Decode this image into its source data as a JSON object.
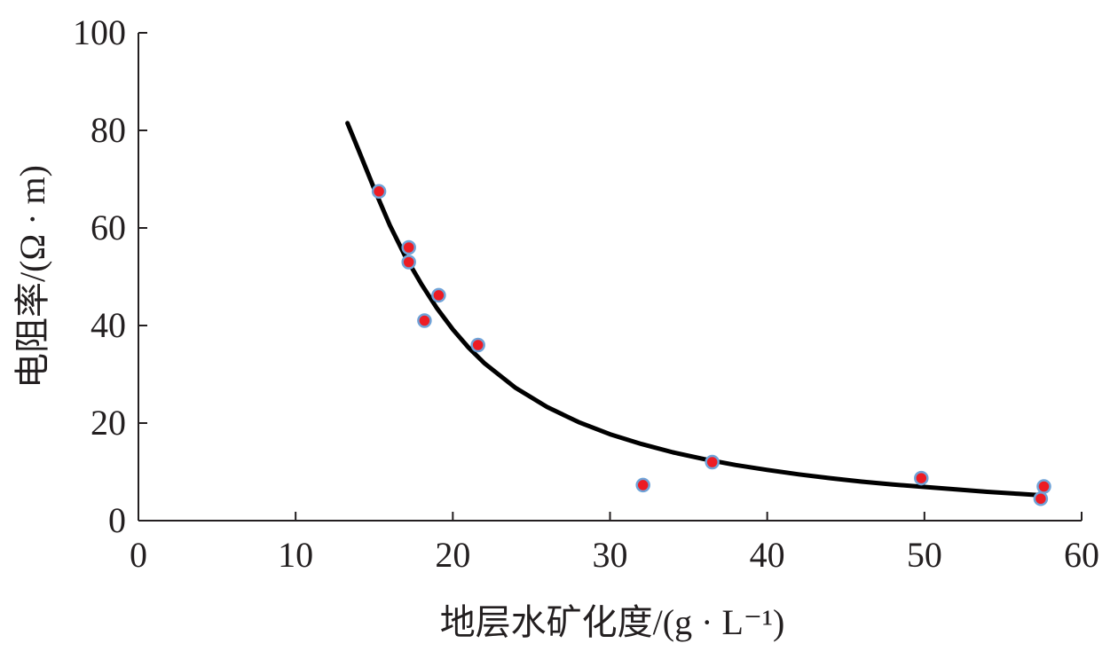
{
  "chart_data": {
    "type": "scatter",
    "title": "",
    "xlabel": "地层水矿化度/(g · L⁻¹)",
    "ylabel": "电阻率/(Ω · m)",
    "xlim": [
      0,
      60
    ],
    "ylim": [
      0,
      100
    ],
    "x_ticks": [
      "0",
      "10",
      "20",
      "30",
      "40",
      "50",
      "60"
    ],
    "y_ticks": [
      "0",
      "20",
      "40",
      "60",
      "80",
      "100"
    ],
    "grid": false,
    "legend": "none",
    "series": [
      {
        "kind": "scatter",
        "points": [
          {
            "x": 15.3,
            "y": 67.5
          },
          {
            "x": 17.2,
            "y": 56.0
          },
          {
            "x": 17.2,
            "y": 53.0
          },
          {
            "x": 18.2,
            "y": 41.0
          },
          {
            "x": 19.1,
            "y": 46.2
          },
          {
            "x": 21.6,
            "y": 36.0
          },
          {
            "x": 32.1,
            "y": 7.3
          },
          {
            "x": 36.5,
            "y": 12.0
          },
          {
            "x": 49.8,
            "y": 8.7
          },
          {
            "x": 57.4,
            "y": 4.5
          },
          {
            "x": 57.6,
            "y": 7.0
          }
        ],
        "fill_color": "#ed1c24",
        "edge_color": "#6fa3d8"
      },
      {
        "kind": "line",
        "points": [
          {
            "x": 13.3,
            "y": 81.5
          },
          {
            "x": 14.0,
            "y": 76.0
          },
          {
            "x": 15.0,
            "y": 68.0
          },
          {
            "x": 16.0,
            "y": 60.5
          },
          {
            "x": 17.0,
            "y": 54.0
          },
          {
            "x": 18.0,
            "y": 48.5
          },
          {
            "x": 19.0,
            "y": 43.5
          },
          {
            "x": 20.0,
            "y": 39.2
          },
          {
            "x": 21.0,
            "y": 35.5
          },
          {
            "x": 22.0,
            "y": 32.3
          },
          {
            "x": 24.0,
            "y": 27.2
          },
          {
            "x": 26.0,
            "y": 23.3
          },
          {
            "x": 28.0,
            "y": 20.2
          },
          {
            "x": 30.0,
            "y": 17.7
          },
          {
            "x": 32.0,
            "y": 15.7
          },
          {
            "x": 34.0,
            "y": 14.0
          },
          {
            "x": 36.0,
            "y": 12.6
          },
          {
            "x": 38.0,
            "y": 11.4
          },
          {
            "x": 40.0,
            "y": 10.4
          },
          {
            "x": 42.0,
            "y": 9.5
          },
          {
            "x": 44.0,
            "y": 8.7
          },
          {
            "x": 46.0,
            "y": 8.0
          },
          {
            "x": 48.0,
            "y": 7.4
          },
          {
            "x": 50.0,
            "y": 6.9
          },
          {
            "x": 52.0,
            "y": 6.4
          },
          {
            "x": 54.0,
            "y": 5.9
          },
          {
            "x": 56.0,
            "y": 5.5
          },
          {
            "x": 57.4,
            "y": 5.2
          }
        ],
        "color": "#000000"
      }
    ]
  }
}
